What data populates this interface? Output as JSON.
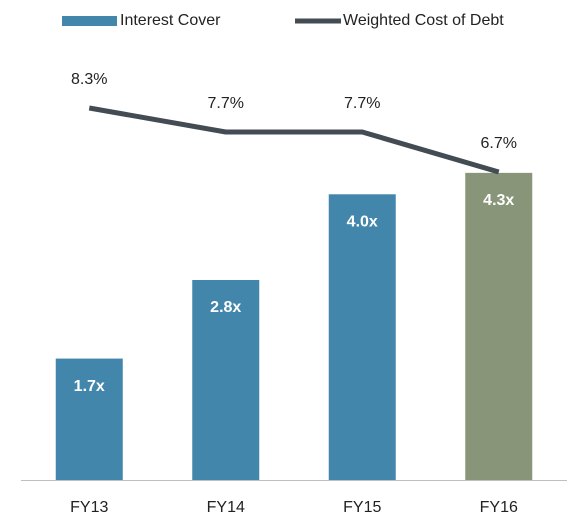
{
  "chart_data": {
    "type": "combo",
    "categories": [
      "FY13",
      "FY14",
      "FY15",
      "FY16"
    ],
    "series": [
      {
        "name": "Interest Cover",
        "type": "bar",
        "color": "#4286ab",
        "colors": [
          "#4286ab",
          "#4286ab",
          "#4286ab",
          "#889579"
        ],
        "values": [
          1.7,
          2.8,
          4.0,
          4.3
        ],
        "value_labels": [
          "1.7x",
          "2.8x",
          "4.0x",
          "4.3x"
        ]
      },
      {
        "name": "Weighted Cost of Debt",
        "type": "line",
        "axis": "y2",
        "color": "#434b53",
        "values": [
          8.3,
          7.7,
          7.7,
          6.7
        ],
        "value_labels": [
          "8.3%",
          "7.7%",
          "7.7%",
          "6.7%"
        ]
      }
    ],
    "ylim": [
      0,
      5.6
    ],
    "y2lim": [
      -1,
      9
    ]
  }
}
